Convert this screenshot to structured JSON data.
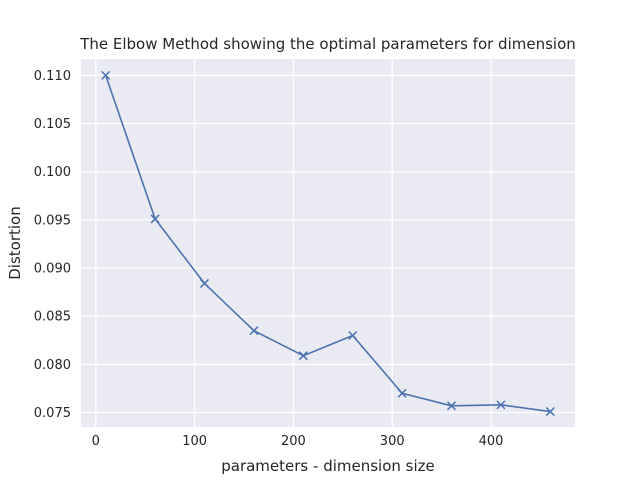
{
  "chart_data": {
    "type": "line",
    "title": "The Elbow Method showing the optimal parameters for dimension",
    "xlabel": "parameters - dimension size",
    "ylabel": "Distortion",
    "xlim": [
      -15,
      485
    ],
    "ylim": [
      0.0735,
      0.1117
    ],
    "xticks": [
      0,
      100,
      200,
      300,
      400
    ],
    "yticks": [
      0.075,
      0.08,
      0.085,
      0.09,
      0.095,
      0.1,
      0.105,
      0.11
    ],
    "ytick_labels": [
      "0.075",
      "0.080",
      "0.085",
      "0.090",
      "0.095",
      "0.100",
      "0.105",
      "0.110"
    ],
    "grid": true,
    "x": [
      10,
      60,
      110,
      160,
      210,
      260,
      310,
      360,
      410,
      460
    ],
    "series": [
      {
        "values": [
          0.11,
          0.0951,
          0.0884,
          0.0835,
          0.0809,
          0.083,
          0.077,
          0.0757,
          0.0758,
          0.0751
        ],
        "color": "#4c72b0",
        "marker": "x"
      }
    ],
    "background": "#eaeaf2",
    "grid_color": "#ffffff"
  }
}
